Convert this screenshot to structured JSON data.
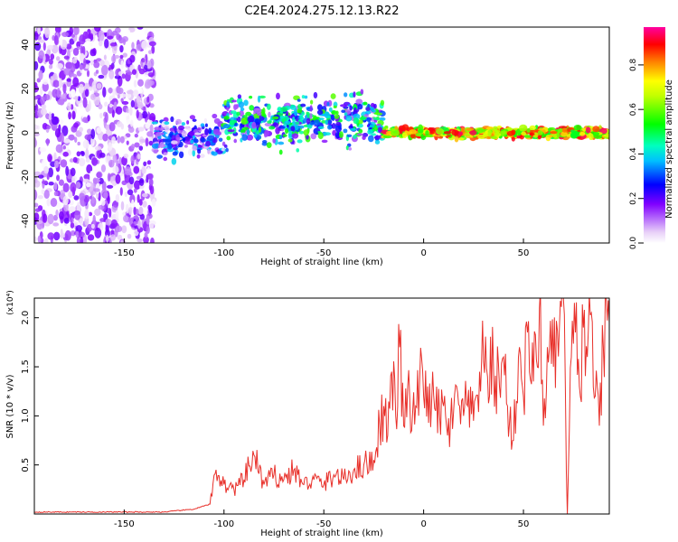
{
  "title": "C2E4.2024.275.12.13.R22",
  "chart_data": [
    {
      "type": "heatmap",
      "xlabel": "Height of straight line (km)",
      "ylabel": "Frequency (Hz)",
      "xlim": [
        -195,
        93
      ],
      "ylim": [
        -50,
        48
      ],
      "x_ticks": [
        -150,
        -100,
        -50,
        0,
        50
      ],
      "y_ticks": [
        -40,
        -20,
        0,
        20,
        40
      ],
      "grid": false,
      "colorbar": {
        "label": "Normalized spectral amplitude",
        "range": [
          0,
          0.97
        ],
        "ticks": [
          0.0,
          0.2,
          0.4,
          0.6,
          0.8
        ],
        "colormap": "rainbow (white-violet-blue-cyan-green-yellow-red-magenta)"
      },
      "regions": [
        {
          "x_range": [
            -195,
            -135
          ],
          "freq_spread": [
            -50,
            48
          ],
          "amplitude": [
            0.0,
            0.2
          ]
        },
        {
          "x_range": [
            -135,
            -100
          ],
          "freq_spread": [
            -15,
            10
          ],
          "amplitude": [
            0.0,
            0.4
          ]
        },
        {
          "x_range": [
            -100,
            -20
          ],
          "freq_spread": [
            -10,
            20
          ],
          "amplitude": [
            0.1,
            0.6
          ]
        },
        {
          "x_range": [
            -20,
            93
          ],
          "freq_spread": [
            -3,
            3
          ],
          "amplitude": [
            0.5,
            0.95
          ]
        }
      ]
    },
    {
      "type": "line",
      "xlabel": "Height of straight line (km)",
      "ylabel": "SNR (10 * v/v)",
      "y_multiplier": "(x10⁴)",
      "xlim": [
        -195,
        93
      ],
      "ylim": [
        0,
        2.2
      ],
      "x_ticks": [
        -150,
        -100,
        -50,
        0,
        50
      ],
      "y_ticks": [
        0.5,
        1.0,
        1.5,
        2.0
      ],
      "grid": false,
      "series_color": "#e8302a",
      "x": [
        -195,
        -160,
        -130,
        -115,
        -107,
        -104,
        -100,
        -95,
        -90,
        -85,
        -80,
        -75,
        -70,
        -65,
        -60,
        -55,
        -50,
        -45,
        -40,
        -35,
        -30,
        -25,
        -22,
        -20,
        -18,
        -16,
        -14,
        -12,
        -10,
        -8,
        -6,
        -4,
        -2,
        0,
        2,
        4,
        6,
        8,
        10,
        12,
        15,
        18,
        20,
        22,
        25,
        28,
        30,
        32,
        35,
        38,
        40,
        42,
        45,
        48,
        50,
        52,
        55,
        58,
        60,
        62,
        65,
        68,
        70,
        72,
        74,
        76,
        78,
        80,
        82,
        84,
        86,
        88,
        90,
        93
      ],
      "values": [
        0.02,
        0.02,
        0.02,
        0.05,
        0.1,
        0.45,
        0.3,
        0.25,
        0.35,
        0.6,
        0.3,
        0.4,
        0.35,
        0.45,
        0.3,
        0.35,
        0.3,
        0.4,
        0.35,
        0.45,
        0.5,
        0.55,
        0.9,
        1.1,
        0.8,
        1.45,
        1.0,
        1.7,
        0.9,
        1.3,
        0.85,
        1.1,
        1.35,
        1.2,
        1.3,
        1.15,
        1.05,
        1.0,
        1.1,
        0.8,
        1.05,
        1.1,
        1.0,
        1.1,
        0.95,
        1.45,
        1.55,
        1.4,
        1.5,
        1.3,
        1.6,
        1.1,
        0.75,
        1.7,
        1.2,
        1.85,
        1.35,
        2.1,
        0.9,
        1.7,
        1.5,
        1.9,
        2.2,
        0.0,
        1.6,
        1.85,
        1.3,
        1.9,
        1.6,
        2.05,
        1.2,
        0.9,
        1.7,
        1.95
      ]
    }
  ]
}
